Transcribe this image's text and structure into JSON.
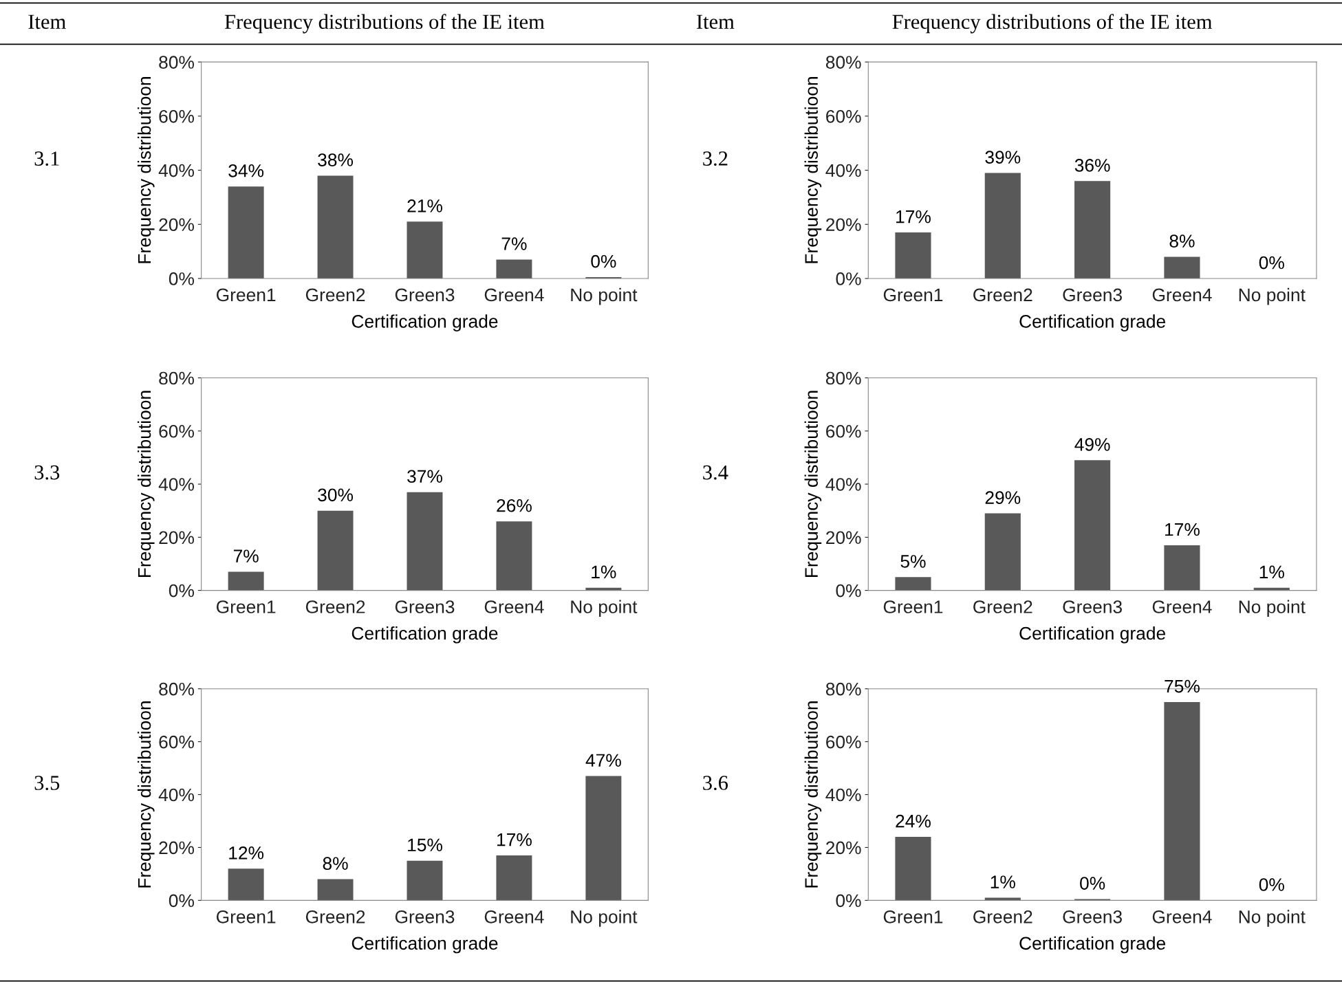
{
  "chart_data": [
    {
      "type": "bar",
      "annotations": [
        "Item",
        "Frequency distributions of the IE item",
        "3.1"
      ],
      "xlabel": "Certification grade",
      "ylabel": "Frequency distributioon",
      "categories": [
        "Green1",
        "Green2",
        "Green3",
        "Green4",
        "No point"
      ],
      "values": [
        34,
        38,
        21,
        7,
        0.5
      ],
      "value_labels": [
        "34%",
        "38%",
        "21%",
        "7%",
        "0%"
      ],
      "color": "#595959",
      "ylim": [
        0,
        80
      ],
      "yticks": [
        {
          "value": 0,
          "label": "0%"
        },
        {
          "value": 20,
          "label": "20%"
        },
        {
          "value": 40,
          "label": "40%"
        },
        {
          "value": 60,
          "label": "60%"
        },
        {
          "value": 80,
          "label": "80%"
        }
      ],
      "grid": false,
      "legend": false
    },
    {
      "type": "bar",
      "annotations": [
        "Item",
        "Frequency distributions of the IE item",
        "3.2"
      ],
      "xlabel": "Certification grade",
      "ylabel": "Frequency distributioon",
      "categories": [
        "Green1",
        "Green2",
        "Green3",
        "Green4",
        "No point"
      ],
      "values": [
        17,
        39,
        36,
        8,
        0
      ],
      "value_labels": [
        "17%",
        "39%",
        "36%",
        "8%",
        "0%"
      ],
      "color": "#595959",
      "ylim": [
        0,
        80
      ],
      "yticks": [
        {
          "value": 0,
          "label": "0%"
        },
        {
          "value": 20,
          "label": "20%"
        },
        {
          "value": 40,
          "label": "40%"
        },
        {
          "value": 60,
          "label": "60%"
        },
        {
          "value": 80,
          "label": "80%"
        }
      ],
      "grid": false,
      "legend": false
    },
    {
      "type": "bar",
      "annotations": [
        "3.3"
      ],
      "xlabel": "Certification grade",
      "ylabel": "Frequency distributioon",
      "categories": [
        "Green1",
        "Green2",
        "Green3",
        "Green4",
        "No point"
      ],
      "values": [
        7,
        30,
        37,
        26,
        1
      ],
      "value_labels": [
        "7%",
        "30%",
        "37%",
        "26%",
        "1%"
      ],
      "color": "#595959",
      "ylim": [
        0,
        80
      ],
      "yticks": [
        {
          "value": 0,
          "label": "0%"
        },
        {
          "value": 20,
          "label": "20%"
        },
        {
          "value": 40,
          "label": "40%"
        },
        {
          "value": 60,
          "label": "60%"
        },
        {
          "value": 80,
          "label": "80%"
        }
      ],
      "grid": false,
      "legend": false
    },
    {
      "type": "bar",
      "annotations": [
        "3.4"
      ],
      "xlabel": "Certification grade",
      "ylabel": "Frequency distributioon",
      "categories": [
        "Green1",
        "Green2",
        "Green3",
        "Green4",
        "No point"
      ],
      "values": [
        5,
        29,
        49,
        17,
        1
      ],
      "value_labels": [
        "5%",
        "29%",
        "49%",
        "17%",
        "1%"
      ],
      "color": "#595959",
      "ylim": [
        0,
        80
      ],
      "yticks": [
        {
          "value": 0,
          "label": "0%"
        },
        {
          "value": 20,
          "label": "20%"
        },
        {
          "value": 40,
          "label": "40%"
        },
        {
          "value": 60,
          "label": "60%"
        },
        {
          "value": 80,
          "label": "80%"
        }
      ],
      "grid": false,
      "legend": false
    },
    {
      "type": "bar",
      "annotations": [
        "3.5"
      ],
      "xlabel": "Certification grade",
      "ylabel": "Frequency distributioon",
      "categories": [
        "Green1",
        "Green2",
        "Green3",
        "Green4",
        "No point"
      ],
      "values": [
        12,
        8,
        15,
        17,
        47
      ],
      "value_labels": [
        "12%",
        "8%",
        "15%",
        "17%",
        "47%"
      ],
      "color": "#595959",
      "ylim": [
        0,
        80
      ],
      "yticks": [
        {
          "value": 0,
          "label": "0%"
        },
        {
          "value": 20,
          "label": "20%"
        },
        {
          "value": 40,
          "label": "40%"
        },
        {
          "value": 60,
          "label": "60%"
        },
        {
          "value": 80,
          "label": "80%"
        }
      ],
      "grid": false,
      "legend": false
    },
    {
      "type": "bar",
      "annotations": [
        "3.6"
      ],
      "xlabel": "Certification grade",
      "ylabel": "Frequency distributioon",
      "categories": [
        "Green1",
        "Green2",
        "Green3",
        "Green4",
        "No point"
      ],
      "values": [
        24,
        1,
        0.5,
        75,
        0
      ],
      "value_labels": [
        "24%",
        "1%",
        "0%",
        "75%",
        "0%"
      ],
      "color": "#595959",
      "ylim": [
        0,
        80
      ],
      "yticks": [
        {
          "value": 0,
          "label": "0%"
        },
        {
          "value": 20,
          "label": "20%"
        },
        {
          "value": 40,
          "label": "40%"
        },
        {
          "value": 60,
          "label": "60%"
        },
        {
          "value": 80,
          "label": "80%"
        }
      ],
      "grid": false,
      "legend": false
    }
  ]
}
